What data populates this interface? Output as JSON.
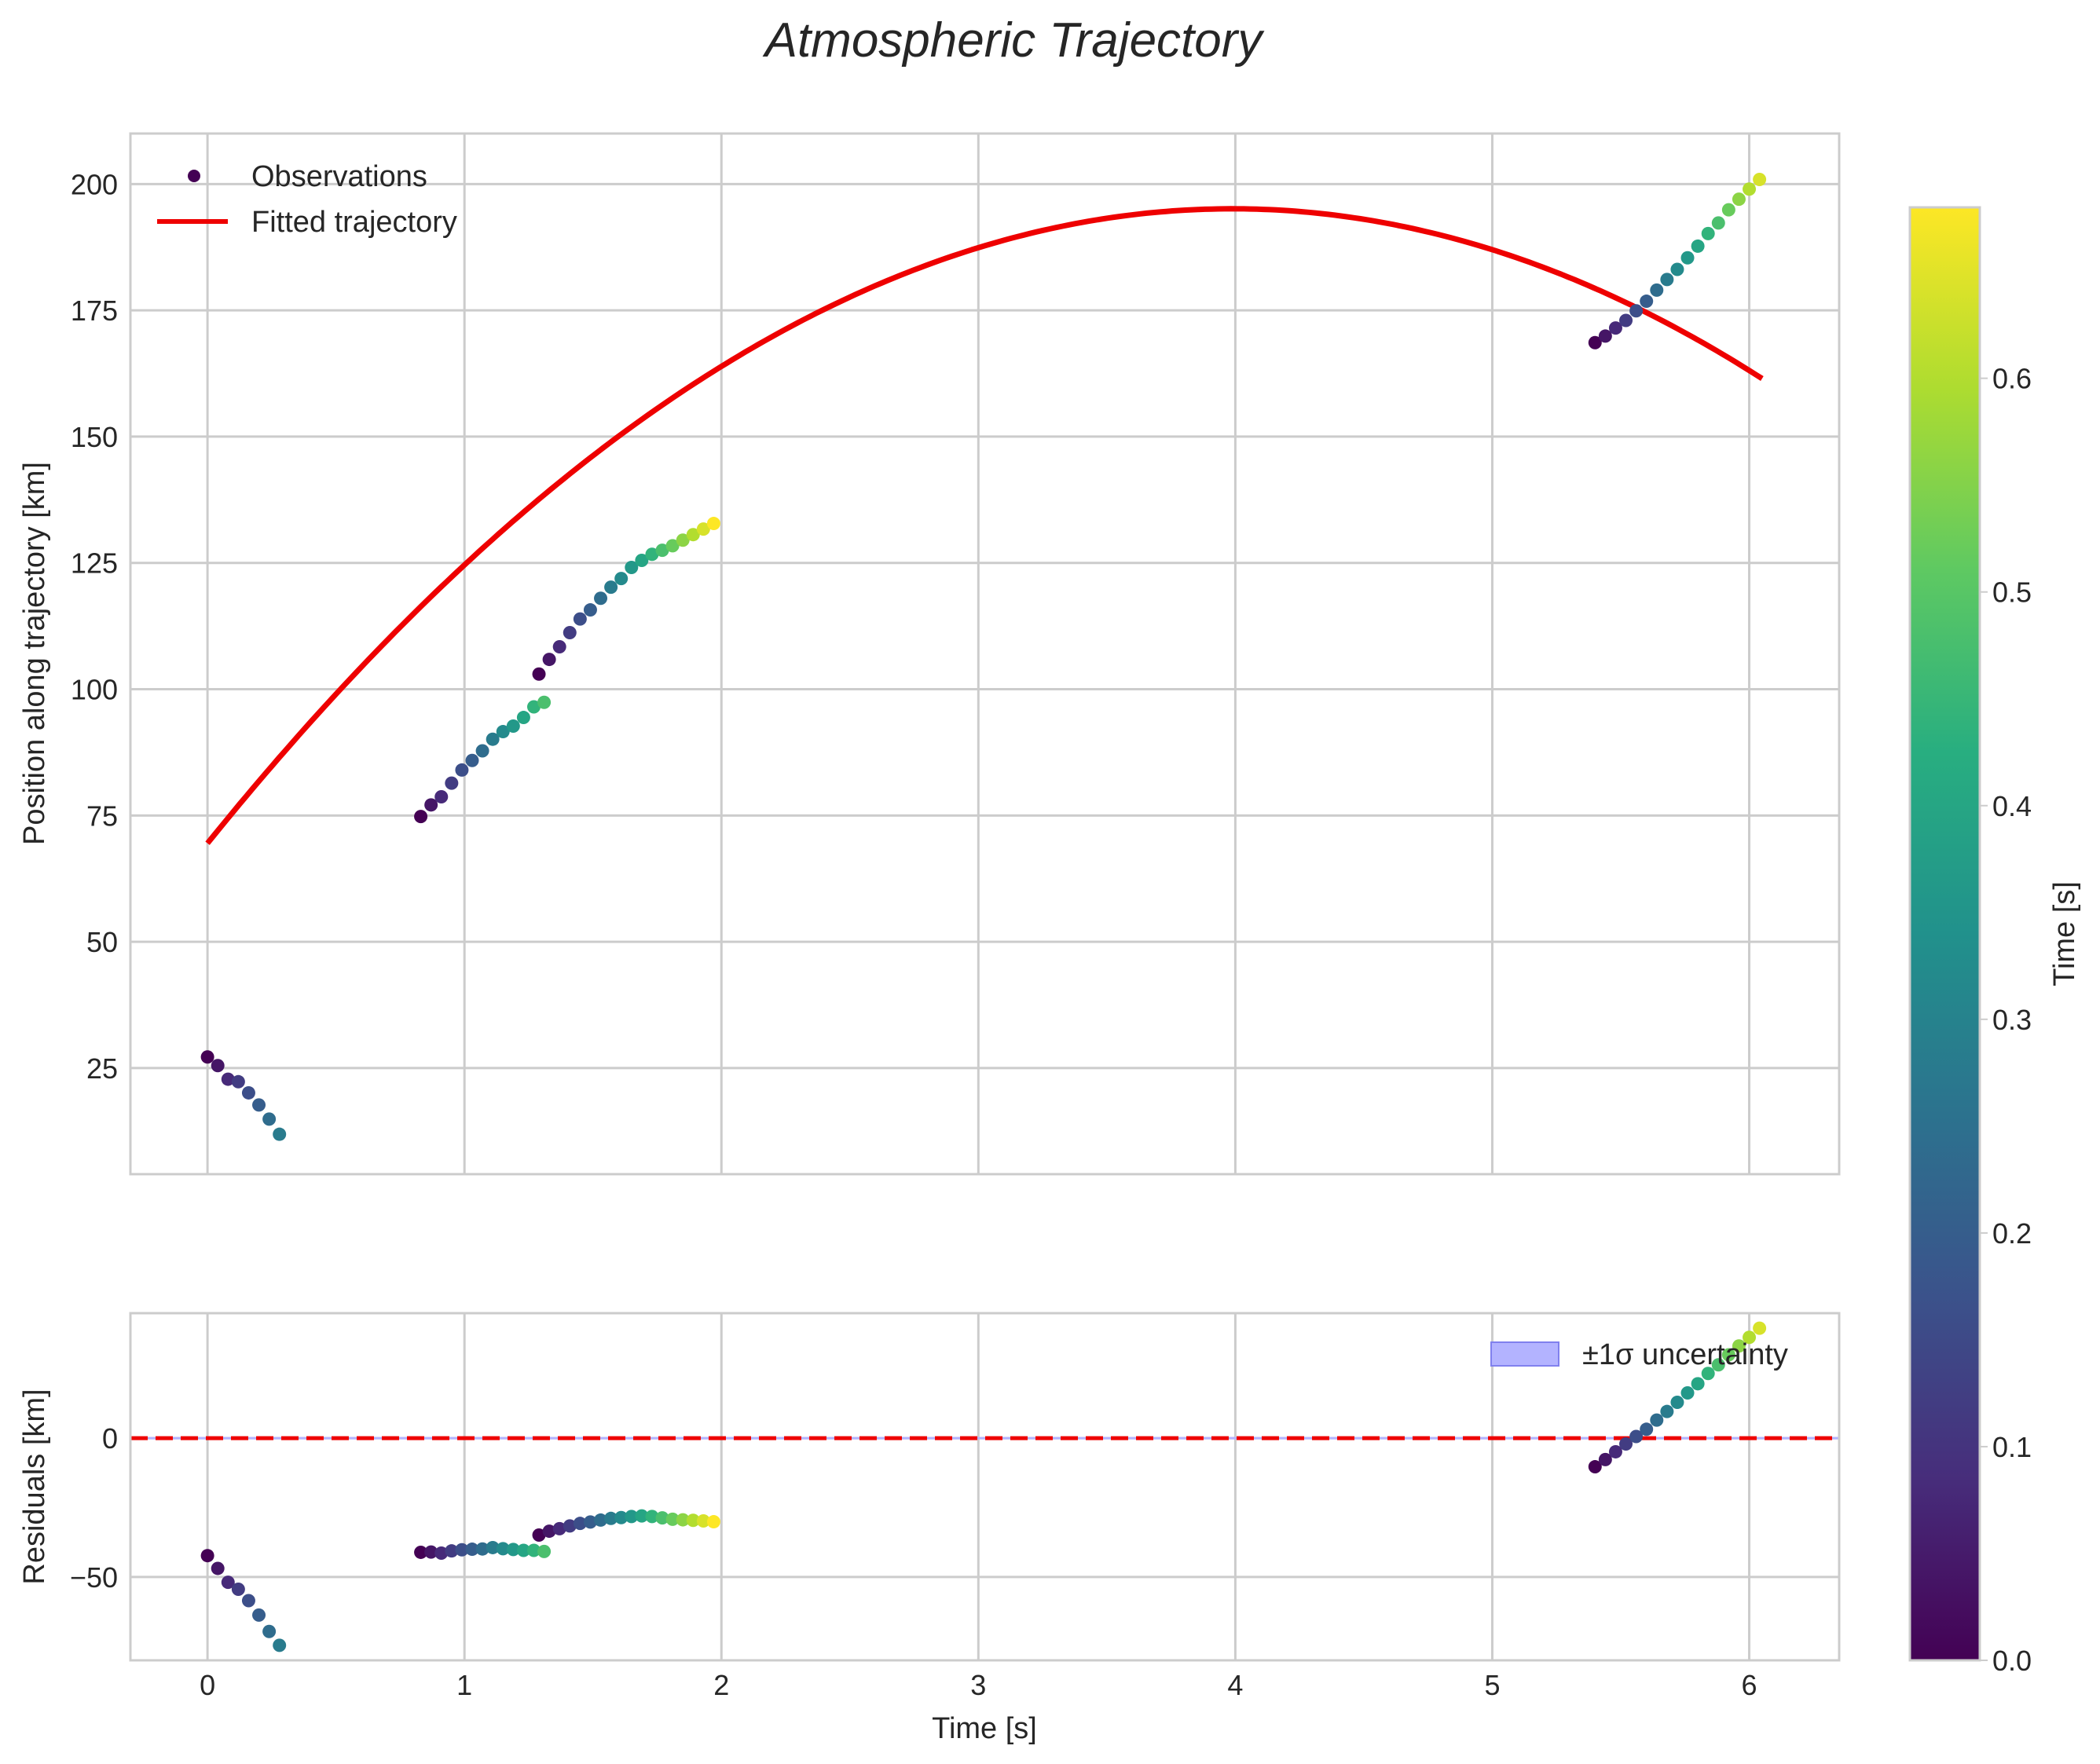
{
  "title": "Atmospheric Trajectory",
  "chart_data": [
    {
      "type": "scatter",
      "panel": "main",
      "ylabel": "Position along trajectory [km]",
      "xlim": [
        -0.3,
        6.35
      ],
      "ylim": [
        4,
        210
      ],
      "xticks": [
        0,
        1,
        2,
        3,
        4,
        5,
        6
      ],
      "yticks": [
        25,
        50,
        75,
        100,
        125,
        150,
        175,
        200
      ],
      "grid": true,
      "legend": {
        "position": "top-left",
        "entries": [
          "Observations",
          "Fitted trajectory"
        ]
      },
      "series": [
        {
          "name": "Observations",
          "kind": "scatter",
          "colormap": "viridis",
          "segments": [
            {
              "x": [
                0.0,
                0.04,
                0.08,
                0.12,
                0.16,
                0.2,
                0.24,
                0.28
              ],
              "y": [
                27.2,
                25.5,
                22.8,
                22.3,
                20.1,
                17.7,
                14.9,
                11.9
              ],
              "c": [
                0.0,
                0.04,
                0.08,
                0.12,
                0.16,
                0.2,
                0.24,
                0.28
              ]
            },
            {
              "x": [
                0.83,
                0.87,
                0.91,
                0.95,
                0.99,
                1.03,
                1.07,
                1.11,
                1.15,
                1.19,
                1.23,
                1.27,
                1.31
              ],
              "y": [
                74.8,
                77.1,
                78.7,
                81.4,
                84.0,
                85.9,
                87.8,
                90.1,
                91.6,
                92.7,
                94.4,
                96.5,
                97.4
              ],
              "c": [
                0.0,
                0.04,
                0.08,
                0.12,
                0.16,
                0.2,
                0.24,
                0.28,
                0.32,
                0.36,
                0.4,
                0.44,
                0.48
              ]
            },
            {
              "x": [
                1.29,
                1.33,
                1.37,
                1.41,
                1.45,
                1.49,
                1.53,
                1.57,
                1.61,
                1.65,
                1.69,
                1.73,
                1.77,
                1.81,
                1.85,
                1.89,
                1.93,
                1.97
              ],
              "y": [
                103.0,
                105.9,
                108.4,
                111.2,
                113.9,
                115.7,
                118.0,
                120.2,
                121.9,
                124.1,
                125.5,
                126.7,
                127.5,
                128.4,
                129.5,
                130.6,
                131.7,
                132.8
              ],
              "c": [
                0.0,
                0.04,
                0.08,
                0.12,
                0.16,
                0.2,
                0.24,
                0.28,
                0.32,
                0.36,
                0.4,
                0.44,
                0.48,
                0.52,
                0.56,
                0.6,
                0.64,
                0.68
              ]
            },
            {
              "x": [
                5.4,
                5.44,
                5.48,
                5.52,
                5.56,
                5.6,
                5.64,
                5.68,
                5.72,
                5.76,
                5.8,
                5.84,
                5.88,
                5.92,
                5.96,
                6.0,
                6.04
              ],
              "y": [
                168.6,
                169.9,
                171.5,
                173.0,
                174.9,
                176.8,
                179.0,
                181.1,
                183.1,
                185.4,
                187.7,
                190.2,
                192.3,
                194.9,
                197.0,
                199.0,
                200.9
              ],
              "c": [
                0.0,
                0.04,
                0.08,
                0.12,
                0.16,
                0.2,
                0.24,
                0.28,
                0.32,
                0.36,
                0.4,
                0.44,
                0.48,
                0.52,
                0.56,
                0.6,
                0.64
              ]
            }
          ]
        },
        {
          "name": "Fitted trajectory",
          "kind": "line",
          "color": "#ee0000",
          "model": "quadratic",
          "coefficients": [
            69.5,
            63.0,
            -7.9
          ],
          "x_range": [
            0.0,
            6.05
          ]
        }
      ]
    },
    {
      "type": "scatter",
      "panel": "residuals",
      "xlabel": "Time [s]",
      "ylabel": "Residuals [km]",
      "xlim": [
        -0.3,
        6.35
      ],
      "ylim": [
        -80,
        45
      ],
      "xticks": [
        0,
        1,
        2,
        3,
        4,
        5,
        6
      ],
      "yticks": [
        -50,
        0
      ],
      "ytick_labels": [
        "−50",
        "0"
      ],
      "grid": true,
      "zero_line": {
        "y": 0,
        "color": "#ee0000",
        "style": "dashed"
      },
      "legend": {
        "position": "top-right",
        "entries": [
          "±1σ uncertainty"
        ]
      },
      "series": [
        {
          "name": "Residuals",
          "kind": "scatter",
          "colormap": "viridis",
          "segments": [
            {
              "x": [
                0.0,
                0.04,
                0.08,
                0.12,
                0.16,
                0.2,
                0.24,
                0.28
              ],
              "y": [
                -42.3,
                -46.9,
                -51.9,
                -54.4,
                -58.5,
                -63.7,
                -69.6,
                -74.6
              ],
              "c": [
                0.0,
                0.04,
                0.08,
                0.12,
                0.16,
                0.2,
                0.24,
                0.28
              ]
            },
            {
              "x": [
                0.83,
                0.87,
                0.91,
                0.95,
                0.99,
                1.03,
                1.07,
                1.11,
                1.15,
                1.19,
                1.23,
                1.27,
                1.31
              ],
              "y": [
                -41.1,
                -41.0,
                -41.4,
                -40.6,
                -40.2,
                -40.0,
                -39.9,
                -39.4,
                -39.8,
                -40.1,
                -40.4,
                -40.4,
                -40.8
              ],
              "c": [
                0.0,
                0.04,
                0.08,
                0.12,
                0.16,
                0.2,
                0.24,
                0.28,
                0.32,
                0.36,
                0.4,
                0.44,
                0.48
              ]
            },
            {
              "x": [
                1.29,
                1.33,
                1.37,
                1.41,
                1.45,
                1.49,
                1.53,
                1.57,
                1.61,
                1.65,
                1.69,
                1.73,
                1.77,
                1.81,
                1.85,
                1.89,
                1.93,
                1.97
              ],
              "y": [
                -34.9,
                -33.5,
                -32.6,
                -31.6,
                -30.7,
                -30.2,
                -29.5,
                -28.9,
                -28.6,
                -28.2,
                -28.0,
                -28.2,
                -28.7,
                -29.2,
                -29.4,
                -29.6,
                -29.8,
                -30.1
              ],
              "c": [
                0.0,
                0.04,
                0.08,
                0.12,
                0.16,
                0.2,
                0.24,
                0.28,
                0.32,
                0.36,
                0.4,
                0.44,
                0.48,
                0.52,
                0.56,
                0.6,
                0.64,
                0.68
              ]
            },
            {
              "x": [
                5.4,
                5.44,
                5.48,
                5.52,
                5.56,
                5.6,
                5.64,
                5.68,
                5.72,
                5.76,
                5.8,
                5.84,
                5.88,
                5.92,
                5.96,
                6.0,
                6.04
              ],
              "y": [
                -10.3,
                -7.7,
                -4.9,
                -2.1,
                0.6,
                3.2,
                6.5,
                9.6,
                12.9,
                16.3,
                19.6,
                23.3,
                26.4,
                30.0,
                33.2,
                36.3,
                39.6
              ],
              "c": [
                0.0,
                0.04,
                0.08,
                0.12,
                0.16,
                0.2,
                0.24,
                0.28,
                0.32,
                0.36,
                0.4,
                0.44,
                0.48,
                0.52,
                0.56,
                0.6,
                0.64
              ]
            }
          ]
        }
      ]
    },
    {
      "type": "colorbar",
      "label": "Time [s]",
      "colormap": "viridis",
      "range": [
        0.0,
        0.68
      ],
      "ticks": [
        0.0,
        0.1,
        0.2,
        0.3,
        0.4,
        0.5,
        0.6
      ],
      "tick_labels": [
        "0.0",
        "0.1",
        "0.2",
        "0.3",
        "0.4",
        "0.5",
        "0.6"
      ]
    }
  ]
}
